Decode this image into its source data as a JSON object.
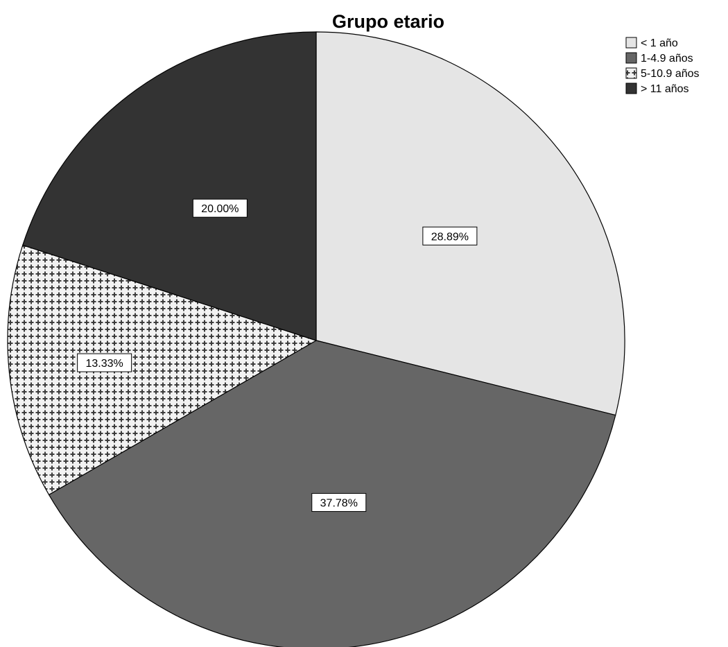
{
  "chart_data": {
    "type": "pie",
    "title": "Grupo etario",
    "categories": [
      "< 1 año",
      "1-4.9 años",
      "5-10.9 años",
      "> 11 años"
    ],
    "values": [
      28.89,
      37.78,
      13.33,
      20.0
    ],
    "labels": [
      "28.89%",
      "37.78%",
      "13.33%",
      "20.00%"
    ],
    "colors": [
      "#e5e5e5",
      "#666666",
      "pattern-cross",
      "#333333"
    ],
    "legend_position": "top-right",
    "start_angle": "12 o'clock",
    "direction": "clockwise"
  }
}
